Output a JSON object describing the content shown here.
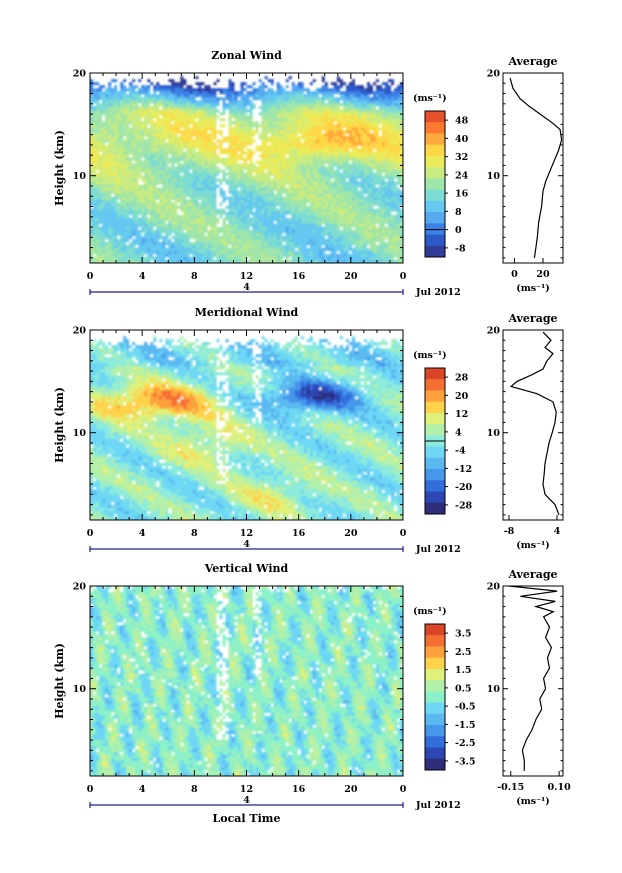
{
  "colors": {
    "zonal_scale": [
      "#323c96",
      "#2d5ac8",
      "#3c82e6",
      "#55aaf0",
      "#64c8f0",
      "#7ddcd2",
      "#a0e6aa",
      "#c8eb82",
      "#ebeb5a",
      "#ffd746",
      "#ffaa3c",
      "#ff7832",
      "#e6502d"
    ],
    "meridional_scale": [
      "#2d2d78",
      "#2d46b4",
      "#326edc",
      "#4696eb",
      "#5ab9f0",
      "#6ed7f5",
      "#8cebdc",
      "#b4f0aa",
      "#e1f078",
      "#ffd24b",
      "#ffa03c",
      "#f56e32",
      "#dc4628"
    ],
    "vertical_scale": [
      "#2d2d78",
      "#2d46b4",
      "#326edc",
      "#4696eb",
      "#5ab9f0",
      "#6ed7f5",
      "#8cf0c8",
      "#b4f0aa",
      "#e1f078",
      "#ffd24b",
      "#ffa03c",
      "#f56e32",
      "#dc4628"
    ],
    "axis": "#000000",
    "date_axis": "#1e1e8c"
  },
  "figure": {
    "xlabel": "Local Time",
    "date_label": "Jul 2012",
    "day_label": "4",
    "unit_label": "(ms⁻¹)",
    "avg_unit_label": "(ms⁻¹)",
    "average_title": "Average"
  },
  "chart_data": [
    {
      "type": "heatmap",
      "title": "Zonal Wind",
      "ylabel": "Height (km)",
      "xlabel": "Local Time",
      "x_ticks": [
        "0",
        "4",
        "8",
        "12",
        "16",
        "20",
        "0"
      ],
      "x_range_hours": [
        0,
        24
      ],
      "y_ticks": [
        "10",
        "20"
      ],
      "y_range_km": [
        1.5,
        20
      ],
      "colorbar_ticks": [
        "48",
        "40",
        "32",
        "24",
        "16",
        "8",
        "0",
        "-8"
      ],
      "colorbar_range": [
        -12,
        52
      ],
      "colorbar_zero_line": 0,
      "average_profile": {
        "title": "Average",
        "xlabel": "(ms⁻¹)",
        "x_ticks": [
          "0",
          "20"
        ],
        "x_range": [
          -8,
          34
        ],
        "y_ticks": [
          "10",
          "20"
        ],
        "height_km": [
          19.5,
          18.5,
          17.5,
          16.8,
          16.0,
          15.2,
          14.5,
          13.5,
          12.5,
          11.5,
          10.5,
          9.5,
          8.5,
          7.0,
          5.5,
          4.0,
          3.0,
          2.0
        ],
        "value": [
          -3,
          -1,
          4,
          10,
          18,
          26,
          32,
          33,
          31,
          28,
          25,
          22,
          20,
          19,
          17,
          16,
          15,
          14
        ]
      }
    },
    {
      "type": "heatmap",
      "title": "Meridional Wind",
      "ylabel": "Height (km)",
      "xlabel": "Local Time",
      "x_ticks": [
        "0",
        "4",
        "8",
        "12",
        "16",
        "20",
        "0"
      ],
      "x_range_hours": [
        0,
        24
      ],
      "y_ticks": [
        "10",
        "20"
      ],
      "y_range_km": [
        1.5,
        20
      ],
      "colorbar_ticks": [
        "28",
        "20",
        "12",
        "4",
        "-4",
        "-12",
        "-20",
        "-28"
      ],
      "colorbar_range": [
        -32,
        32
      ],
      "colorbar_zero_line": 0,
      "average_profile": {
        "title": "Average",
        "xlabel": "(ms⁻¹)",
        "x_ticks": [
          "-8",
          "4"
        ],
        "x_range": [
          -9.5,
          5.5
        ],
        "y_ticks": [
          "10",
          "20"
        ],
        "height_km": [
          19.8,
          19.0,
          18.3,
          17.7,
          17.0,
          16.2,
          15.6,
          15.0,
          14.5,
          13.8,
          13.0,
          12.0,
          11.0,
          10.0,
          9.0,
          8.0,
          7.0,
          6.0,
          5.0,
          4.0,
          3.0,
          2.0
        ],
        "value": [
          0.5,
          2.5,
          1.0,
          3.0,
          1.5,
          0.5,
          -2.5,
          -6.0,
          -7.5,
          -1.0,
          3.0,
          3.8,
          3.5,
          2.8,
          2.0,
          1.5,
          1.0,
          0.8,
          0.5,
          1.0,
          3.5,
          4.5
        ]
      }
    },
    {
      "type": "heatmap",
      "title": "Vertical Wind",
      "ylabel": "Height (km)",
      "xlabel": "Local Time",
      "x_ticks": [
        "0",
        "4",
        "8",
        "12",
        "16",
        "20",
        "0"
      ],
      "x_range_hours": [
        0,
        24
      ],
      "y_ticks": [
        "10",
        "20"
      ],
      "y_range_km": [
        1.5,
        20
      ],
      "colorbar_ticks": [
        "3.5",
        "2.5",
        "1.5",
        "0.5",
        "-0.5",
        "-1.5",
        "-2.5",
        "-3.5"
      ],
      "colorbar_range": [
        -4,
        4
      ],
      "colorbar_zero_line": null,
      "average_profile": {
        "title": "Average",
        "xlabel": "(ms⁻¹)",
        "x_ticks": [
          "-0.15",
          "0.10"
        ],
        "x_range": [
          -0.19,
          0.12
        ],
        "y_ticks": [
          "10",
          "20"
        ],
        "height_km": [
          20.0,
          19.5,
          19.0,
          18.5,
          18.0,
          17.5,
          17.0,
          16.0,
          15.0,
          14.0,
          13.0,
          12.0,
          11.0,
          10.0,
          9.0,
          8.0,
          7.0,
          6.0,
          5.0,
          4.0,
          3.0,
          2.0
        ],
        "value": [
          -0.16,
          0.09,
          -0.1,
          0.08,
          -0.02,
          0.07,
          0.02,
          0.05,
          0.03,
          0.06,
          0.04,
          0.05,
          0.02,
          0.03,
          0.0,
          0.01,
          -0.02,
          -0.04,
          -0.07,
          -0.09,
          -0.08,
          -0.08
        ]
      }
    }
  ]
}
